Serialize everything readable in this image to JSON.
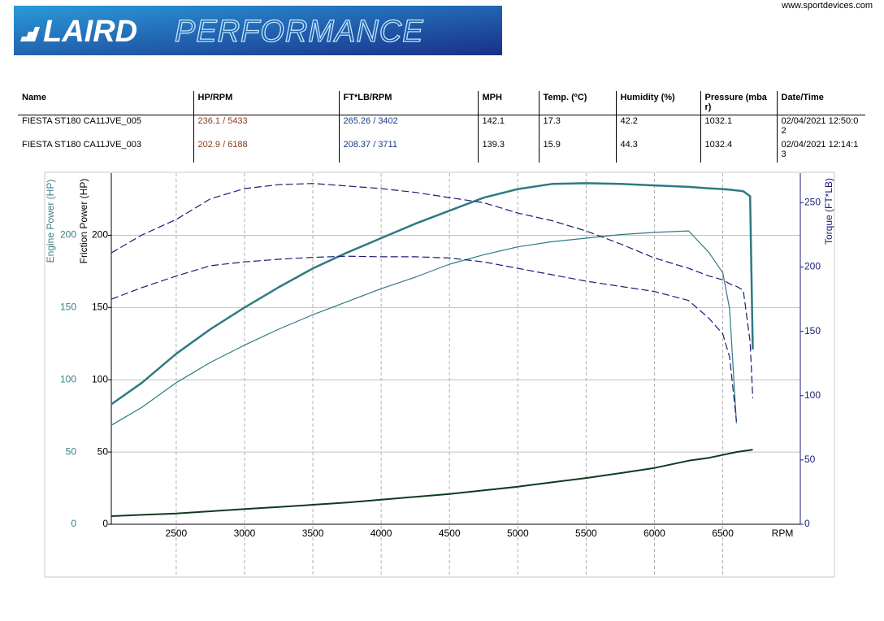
{
  "header": {
    "brand": "LAIRD",
    "brand_suffix": "PERFORMANCE",
    "url": "www.sportdevices.com"
  },
  "table": {
    "columns": [
      "Name",
      "HP/RPM",
      "FT*LB/RPM",
      "MPH",
      "Temp. (ºC)",
      "Humidity (%)",
      "Pressure (mbar)",
      "Date/Time"
    ],
    "rows": [
      [
        "FIESTA ST180 CA11JVE_005",
        "236.1 / 5433",
        "265.26 / 3402",
        "142.1",
        "17.3",
        "42.2",
        "1032.1",
        "02/04/2021 12:50:02"
      ],
      [
        "FIESTA ST180 CA11JVE_003",
        "202.9 / 6188",
        "208.37 / 3711",
        "139.3",
        "15.9",
        "44.3",
        "1032.4",
        "02/04/2021 12:14:13"
      ]
    ]
  },
  "chart_data": {
    "type": "line",
    "xlabel": "RPM",
    "ylabel": "Engine Power (HP)",
    "y3label": "Friction Power (HP)",
    "y2label": "Torque (FT*LB)",
    "x": [
      2025,
      2250,
      2500,
      2750,
      3000,
      3250,
      3500,
      3750,
      4000,
      4250,
      4500,
      4750,
      5000,
      5250,
      5500,
      5750,
      6000,
      6250,
      6400,
      6500,
      6550,
      6600,
      6650,
      6700,
      6720
    ],
    "xlim": [
      2025,
      7020
    ],
    "xticks": [
      2500,
      3000,
      3500,
      4000,
      4500,
      5000,
      5500,
      6000,
      6500
    ],
    "ylim": [
      0,
      243
    ],
    "yticks": [
      0,
      50,
      100,
      150,
      200
    ],
    "y3lim": [
      0,
      243
    ],
    "y3ticks": [
      0,
      50,
      100,
      150,
      200
    ],
    "y2lim": [
      0,
      273
    ],
    "y2ticks": [
      0,
      50,
      100,
      150,
      200,
      250
    ],
    "grid": true,
    "series": [
      {
        "color": "#2e7a82",
        "width": 2.5,
        "dash": false,
        "axis": "y",
        "values": [
          83,
          98,
          118,
          135,
          150,
          164,
          177,
          188,
          198,
          208,
          217,
          226,
          232,
          235.5,
          236,
          235.5,
          234.5,
          233.5,
          232.5,
          232,
          231.5,
          231,
          230.5,
          227,
          121
        ]
      },
      {
        "color": "#2e7a82",
        "width": 1.2,
        "dash": false,
        "axis": "y",
        "values": [
          68.5,
          81,
          98,
          112,
          124,
          135,
          145,
          154,
          163,
          171,
          180,
          186.5,
          192,
          195.5,
          198,
          200.5,
          202,
          203,
          188,
          174,
          149,
          70,
          null,
          null,
          null
        ]
      },
      {
        "color": "#1c1c78",
        "width": 1.2,
        "dash": true,
        "axis": "y2",
        "values": [
          211,
          225,
          237,
          253,
          261,
          264,
          265,
          263,
          261,
          258,
          254,
          250,
          242,
          236,
          228,
          218,
          207,
          199,
          193,
          190,
          187,
          185,
          182,
          142,
          98
        ]
      },
      {
        "color": "#1c1c78",
        "width": 1.2,
        "dash": true,
        "axis": "y2",
        "values": [
          175,
          184,
          193,
          201,
          204,
          206,
          207.5,
          208.4,
          208,
          208,
          207,
          204,
          199,
          194,
          189,
          185,
          181,
          174,
          160,
          148,
          130,
          80,
          null,
          null,
          null
        ]
      },
      {
        "color": "#0d3b1e",
        "width": 2,
        "dash": false,
        "axis": "y3",
        "values": [
          5.6,
          6.5,
          7.5,
          9,
          10.5,
          12,
          13.5,
          15,
          17,
          19,
          21,
          23.5,
          26,
          29,
          32,
          35.4,
          39,
          44,
          46,
          48,
          49,
          50,
          50.7,
          51.3,
          51.7
        ]
      }
    ]
  }
}
